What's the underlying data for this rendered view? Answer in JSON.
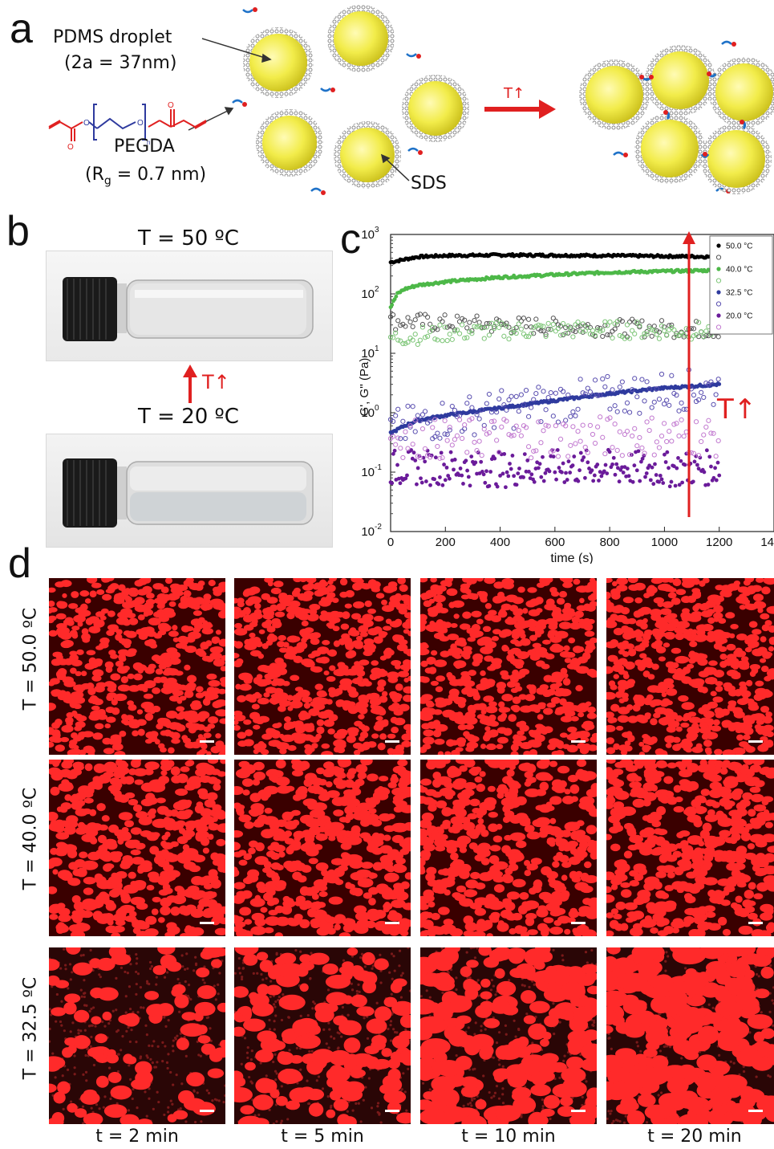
{
  "panel_a": {
    "letter": "a",
    "droplet_label": "PDMS droplet",
    "droplet_size": "(2a = 37nm)",
    "pegda_label": "PEGDA",
    "pegda_rg_prefix": "(R",
    "pegda_rg_sub": "g",
    "pegda_rg_suffix": " = 0.7 nm)",
    "sds_label": "SDS",
    "arrow_label": "T↑",
    "subscript_n": "n",
    "mol_o1": "O",
    "mol_o2": "O",
    "mol_o3": "O",
    "mol_o4": "O"
  },
  "panel_b": {
    "letter": "b",
    "top_label": "T = 50 ºC",
    "bottom_label": "T = 20 ºC",
    "arrow_label": "T↑"
  },
  "panel_c": {
    "letter": "c",
    "arrow_label": "T↑"
  },
  "panel_d": {
    "letter": "d",
    "row_labels": [
      "T = 50.0 ºC",
      "T = 40.0 ºC",
      "T = 32.5 ºC"
    ],
    "col_labels": [
      "t = 2 min",
      "t = 5 min",
      "t = 10 min",
      "t = 20 min"
    ]
  },
  "chart_data": {
    "type": "scatter",
    "xlabel": "time (s)",
    "ylabel": "G', G'' (Pa)",
    "xlim": [
      0,
      1400
    ],
    "ylim": [
      0.01,
      1000
    ],
    "y_scale": "log",
    "x_ticks": [
      0,
      200,
      400,
      600,
      800,
      1000,
      1200,
      1400
    ],
    "x_tick_labels": [
      "0",
      "200",
      "400",
      "600",
      "800",
      "1000",
      "1200",
      "1400"
    ],
    "y_ticks": [
      0.01,
      0.1,
      1,
      10,
      100,
      1000
    ],
    "y_tick_labels": [
      "10",
      "10",
      "10",
      "10",
      "10",
      "10"
    ],
    "y_tick_exponents": [
      "-2",
      "-1",
      "0",
      "1",
      "2",
      "3"
    ],
    "legend_position": "top-right",
    "legend": [
      "50.0 °C",
      "",
      "40.0 °C",
      "",
      "32.5 °C",
      "",
      "20.0 °C",
      ""
    ],
    "series": [
      {
        "name": "50.0 °C",
        "modulus": "G'",
        "marker": "filled",
        "color": "#000000",
        "x": [
          0,
          50,
          100,
          200,
          400,
          600,
          800,
          1000,
          1200
        ],
        "y": [
          340,
          380,
          420,
          440,
          450,
          445,
          440,
          430,
          420
        ]
      },
      {
        "name": "50.0 °C",
        "modulus": "G''",
        "marker": "open",
        "color": "#555555",
        "x": [
          0,
          200,
          400,
          600,
          800,
          1000,
          1200
        ],
        "y": [
          35,
          32,
          30,
          28,
          27,
          26,
          25
        ]
      },
      {
        "name": "40.0 °C",
        "modulus": "G'",
        "marker": "filled",
        "color": "#4db848",
        "x": [
          0,
          25,
          50,
          100,
          200,
          400,
          600,
          800,
          1000,
          1200
        ],
        "y": [
          60,
          100,
          120,
          140,
          160,
          190,
          210,
          230,
          240,
          250
        ]
      },
      {
        "name": "40.0 °C",
        "modulus": "G''",
        "marker": "open",
        "color": "#7cc576",
        "x": [
          0,
          200,
          400,
          600,
          800,
          1000,
          1200
        ],
        "y": [
          18,
          22,
          24,
          25,
          25,
          24,
          24
        ]
      },
      {
        "name": "32.5 °C",
        "modulus": "G'",
        "marker": "filled",
        "color": "#2e3a9e",
        "x": [
          0,
          50,
          100,
          200,
          400,
          600,
          800,
          1000,
          1200
        ],
        "y": [
          0.45,
          0.6,
          0.75,
          0.9,
          1.2,
          1.6,
          2.1,
          2.6,
          3.0
        ]
      },
      {
        "name": "32.5 °C",
        "modulus": "G''",
        "marker": "open",
        "color": "#5a4fb0",
        "x": [
          0,
          100,
          200,
          400,
          600,
          800,
          1000,
          1200
        ],
        "y": [
          0.5,
          0.65,
          0.8,
          1.1,
          1.5,
          1.9,
          2.3,
          2.6
        ]
      },
      {
        "name": "20.0 °C",
        "modulus": "G'",
        "marker": "filled",
        "color": "#6a1b9a",
        "x": [
          0,
          200,
          400,
          600,
          800,
          1000,
          1200
        ],
        "y": [
          0.12,
          0.12,
          0.11,
          0.12,
          0.12,
          0.11,
          0.12
        ]
      },
      {
        "name": "20.0 °C",
        "modulus": "G''",
        "marker": "open",
        "color": "#c27ad0",
        "x": [
          0,
          200,
          400,
          600,
          800,
          1000,
          1200
        ],
        "y": [
          0.4,
          0.35,
          0.4,
          0.38,
          0.4,
          0.42,
          0.4
        ]
      }
    ]
  },
  "colors": {
    "droplet": "#f2ec4a",
    "shell": "#b8b8b8",
    "arrow": "#e02020",
    "micro_bg": "#1a0000",
    "micro_red": "#ff2a2a"
  },
  "icons": [
    "pdms-droplet-icon",
    "pegda-molecule-icon",
    "vial-icon",
    "red-arrow-icon",
    "scale-bar-icon"
  ]
}
